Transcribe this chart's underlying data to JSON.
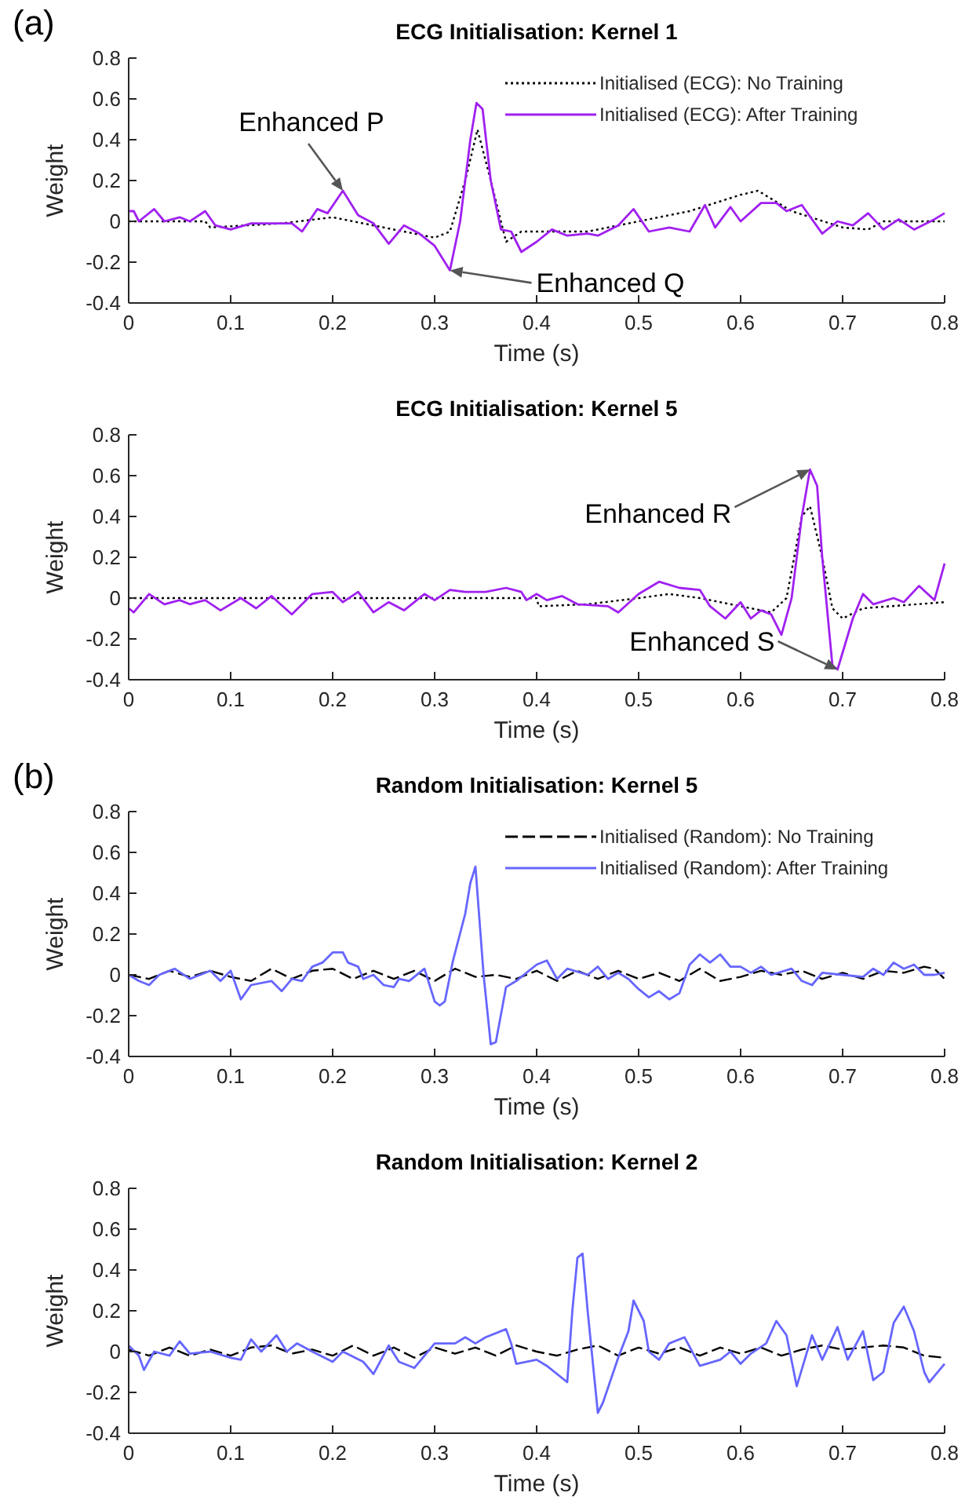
{
  "chart_data": [
    {
      "type": "line",
      "title": "ECG Initialisation: Kernel 1",
      "xlabel": "Time (s)",
      "ylabel": "Weight",
      "xlim": [
        0,
        0.8
      ],
      "xticks": [
        0,
        0.1,
        0.2,
        0.3,
        0.4,
        0.5,
        0.6,
        0.7,
        0.8
      ],
      "ylim": [
        -0.4,
        0.8
      ],
      "yticks": [
        -0.4,
        -0.2,
        0,
        0.2,
        0.4,
        0.6,
        0.8
      ],
      "legend": "top right",
      "annotations": [
        "(a)",
        {
          "text": "Enhanced P",
          "x": 0.21,
          "y": 0.15
        },
        {
          "text": "Enhanced Q",
          "x": 0.315,
          "y": -0.24
        }
      ],
      "series": [
        {
          "name": "Initialised (ECG): No Training",
          "color": "#000000",
          "line_style": "dotted",
          "x": [
            0,
            0.075,
            0.08,
            0.15,
            0.2,
            0.25,
            0.3,
            0.315,
            0.33,
            0.342,
            0.355,
            0.37,
            0.385,
            0.45,
            0.5,
            0.55,
            0.6,
            0.617,
            0.65,
            0.7,
            0.725,
            0.74,
            0.8
          ],
          "values": [
            0,
            0,
            -0.03,
            -0.01,
            0.02,
            -0.03,
            -0.08,
            -0.05,
            0.2,
            0.45,
            0.2,
            -0.1,
            -0.05,
            -0.05,
            0,
            0.05,
            0.13,
            0.15,
            0.05,
            -0.03,
            -0.04,
            0,
            0
          ]
        },
        {
          "name": "Initialised (ECG): After Training",
          "color": "#a020f0",
          "line_style": "solid",
          "x": [
            0,
            0.005,
            0.01,
            0.025,
            0.035,
            0.05,
            0.06,
            0.075,
            0.085,
            0.1,
            0.12,
            0.14,
            0.16,
            0.17,
            0.185,
            0.195,
            0.21,
            0.225,
            0.24,
            0.255,
            0.27,
            0.285,
            0.3,
            0.315,
            0.325,
            0.335,
            0.341,
            0.347,
            0.355,
            0.365,
            0.375,
            0.385,
            0.4,
            0.415,
            0.43,
            0.45,
            0.46,
            0.48,
            0.495,
            0.51,
            0.53,
            0.55,
            0.565,
            0.575,
            0.59,
            0.6,
            0.62,
            0.635,
            0.645,
            0.66,
            0.68,
            0.695,
            0.71,
            0.725,
            0.74,
            0.755,
            0.77,
            0.79,
            0.8
          ],
          "values": [
            0.05,
            0.05,
            0,
            0.06,
            0,
            0.02,
            0,
            0.05,
            -0.02,
            -0.04,
            -0.01,
            -0.01,
            -0.01,
            -0.05,
            0.06,
            0.04,
            0.15,
            0.03,
            -0.01,
            -0.11,
            -0.02,
            -0.06,
            -0.12,
            -0.24,
            0,
            0.4,
            0.58,
            0.55,
            0.2,
            -0.04,
            -0.05,
            -0.15,
            -0.1,
            -0.04,
            -0.07,
            -0.06,
            -0.07,
            -0.02,
            0.06,
            -0.05,
            -0.03,
            -0.05,
            0.08,
            -0.03,
            0.07,
            0,
            0.09,
            0.09,
            0.05,
            0.08,
            -0.06,
            0,
            -0.02,
            0.04,
            -0.04,
            0.01,
            -0.04,
            0.01,
            0.04
          ]
        }
      ]
    },
    {
      "type": "line",
      "title": "ECG Initialisation: Kernel 5",
      "xlabel": "Time (s)",
      "ylabel": "Weight",
      "xlim": [
        0,
        0.8
      ],
      "xticks": [
        0,
        0.1,
        0.2,
        0.3,
        0.4,
        0.5,
        0.6,
        0.7,
        0.8
      ],
      "ylim": [
        -0.4,
        0.8
      ],
      "yticks": [
        -0.4,
        -0.2,
        0,
        0.2,
        0.4,
        0.6,
        0.8
      ],
      "legend": false,
      "annotations": [
        {
          "text": "Enhanced R",
          "x": 0.668,
          "y": 0.63
        },
        {
          "text": "Enhanced S",
          "x": 0.695,
          "y": -0.35
        }
      ],
      "series": [
        {
          "color": "#000000",
          "line_style": "dotted",
          "x": [
            0,
            0.4,
            0.402,
            0.45,
            0.5,
            0.53,
            0.56,
            0.6,
            0.63,
            0.645,
            0.66,
            0.668,
            0.68,
            0.69,
            0.7,
            0.72,
            0.8
          ],
          "values": [
            0,
            0,
            -0.04,
            -0.03,
            0,
            0.02,
            0,
            -0.04,
            -0.07,
            0,
            0.4,
            0.45,
            0.2,
            -0.05,
            -0.1,
            -0.05,
            -0.02
          ]
        },
        {
          "color": "#a020f0",
          "line_style": "solid",
          "x": [
            0,
            0.005,
            0.02,
            0.035,
            0.05,
            0.06,
            0.075,
            0.09,
            0.11,
            0.125,
            0.14,
            0.16,
            0.18,
            0.2,
            0.21,
            0.225,
            0.24,
            0.255,
            0.27,
            0.29,
            0.3,
            0.315,
            0.33,
            0.35,
            0.37,
            0.385,
            0.39,
            0.4,
            0.41,
            0.425,
            0.44,
            0.47,
            0.48,
            0.5,
            0.52,
            0.54,
            0.56,
            0.57,
            0.585,
            0.6,
            0.61,
            0.62,
            0.63,
            0.64,
            0.65,
            0.66,
            0.668,
            0.675,
            0.68,
            0.69,
            0.695,
            0.71,
            0.72,
            0.73,
            0.75,
            0.76,
            0.775,
            0.79,
            0.8
          ],
          "values": [
            -0.05,
            -0.07,
            0.02,
            -0.03,
            -0.01,
            -0.03,
            -0.01,
            -0.06,
            0,
            -0.05,
            0.01,
            -0.08,
            0.02,
            0.03,
            -0.02,
            0.03,
            -0.07,
            -0.02,
            -0.06,
            0.02,
            -0.01,
            0.04,
            0.03,
            0.03,
            0.05,
            0.03,
            -0.01,
            0.02,
            -0.01,
            0.01,
            -0.03,
            -0.04,
            -0.07,
            0.02,
            0.08,
            0.05,
            0.04,
            -0.04,
            -0.1,
            -0.02,
            -0.1,
            -0.06,
            -0.08,
            -0.18,
            0,
            0.4,
            0.63,
            0.55,
            0.2,
            -0.33,
            -0.35,
            -0.1,
            0.02,
            -0.03,
            0,
            -0.02,
            0.06,
            -0.01,
            0.17
          ]
        }
      ]
    },
    {
      "type": "line",
      "title": "Random Initialisation: Kernel 5",
      "xlabel": "Time (s)",
      "ylabel": "Weight",
      "xlim": [
        0,
        0.8
      ],
      "xticks": [
        0,
        0.1,
        0.2,
        0.3,
        0.4,
        0.5,
        0.6,
        0.7,
        0.8
      ],
      "ylim": [
        -0.4,
        0.8
      ],
      "yticks": [
        -0.4,
        -0.2,
        0,
        0.2,
        0.4,
        0.6,
        0.8
      ],
      "legend": "top right",
      "annotations": [
        "(b)"
      ],
      "series": [
        {
          "name": "Initialised (Random): No Training",
          "color": "#000000",
          "line_style": "dashed",
          "x": [
            0,
            0.02,
            0.04,
            0.06,
            0.08,
            0.1,
            0.12,
            0.14,
            0.16,
            0.18,
            0.2,
            0.22,
            0.24,
            0.26,
            0.28,
            0.3,
            0.32,
            0.34,
            0.36,
            0.38,
            0.4,
            0.42,
            0.44,
            0.46,
            0.48,
            0.5,
            0.52,
            0.54,
            0.56,
            0.58,
            0.6,
            0.62,
            0.64,
            0.66,
            0.68,
            0.7,
            0.72,
            0.74,
            0.76,
            0.78,
            0.79,
            0.8
          ],
          "values": [
            0,
            -0.02,
            0.02,
            -0.01,
            0.02,
            -0.01,
            -0.03,
            0.03,
            -0.02,
            0.02,
            0.03,
            -0.02,
            0.02,
            -0.02,
            0.02,
            -0.03,
            0.03,
            -0.01,
            0,
            -0.02,
            0.02,
            -0.03,
            0.02,
            -0.02,
            0.02,
            -0.02,
            0.01,
            -0.03,
            0.03,
            -0.03,
            -0.01,
            0.02,
            0,
            0.02,
            -0.02,
            0.01,
            -0.02,
            0.02,
            0.01,
            0.04,
            0.03,
            -0.02
          ]
        },
        {
          "name": "Initialised (Random): After Training",
          "color": "#6666ff",
          "line_style": "solid",
          "x": [
            0,
            0.01,
            0.02,
            0.03,
            0.045,
            0.06,
            0.08,
            0.09,
            0.1,
            0.11,
            0.12,
            0.14,
            0.15,
            0.16,
            0.17,
            0.18,
            0.19,
            0.2,
            0.21,
            0.215,
            0.225,
            0.23,
            0.24,
            0.25,
            0.26,
            0.265,
            0.275,
            0.29,
            0.3,
            0.305,
            0.31,
            0.318,
            0.33,
            0.335,
            0.34,
            0.348,
            0.355,
            0.36,
            0.37,
            0.38,
            0.39,
            0.4,
            0.41,
            0.42,
            0.43,
            0.45,
            0.46,
            0.47,
            0.48,
            0.49,
            0.5,
            0.51,
            0.52,
            0.53,
            0.54,
            0.55,
            0.56,
            0.57,
            0.58,
            0.59,
            0.6,
            0.61,
            0.62,
            0.63,
            0.65,
            0.66,
            0.67,
            0.68,
            0.7,
            0.72,
            0.73,
            0.74,
            0.75,
            0.76,
            0.77,
            0.78,
            0.79,
            0.8
          ],
          "values": [
            0,
            -0.03,
            -0.05,
            0,
            0.03,
            -0.02,
            0.02,
            -0.03,
            0.02,
            -0.12,
            -0.05,
            -0.03,
            -0.08,
            -0.02,
            -0.03,
            0.04,
            0.06,
            0.11,
            0.11,
            0.06,
            0.04,
            -0.02,
            0,
            -0.05,
            -0.06,
            -0.02,
            -0.03,
            0.03,
            -0.13,
            -0.15,
            -0.13,
            0.07,
            0.3,
            0.45,
            0.53,
            0,
            -0.34,
            -0.33,
            -0.06,
            -0.03,
            0.01,
            0.05,
            0.07,
            -0.02,
            0.03,
            0,
            0.04,
            -0.02,
            0.01,
            -0.02,
            -0.07,
            -0.11,
            -0.08,
            -0.12,
            -0.09,
            0.05,
            0.1,
            0.06,
            0.1,
            0.04,
            0.04,
            0.01,
            0.04,
            0,
            0.03,
            -0.03,
            -0.05,
            0.01,
            0,
            -0.01,
            0.03,
            0,
            0.06,
            0.03,
            0.05,
            0,
            0,
            0.01
          ]
        }
      ]
    },
    {
      "type": "line",
      "title": "Random Initialisation: Kernel 2",
      "xlabel": "Time (s)",
      "ylabel": "Weight",
      "xlim": [
        0,
        0.8
      ],
      "xticks": [
        0,
        0.1,
        0.2,
        0.3,
        0.4,
        0.5,
        0.6,
        0.7,
        0.8
      ],
      "ylim": [
        -0.4,
        0.8
      ],
      "yticks": [
        -0.4,
        -0.2,
        0,
        0.2,
        0.4,
        0.6,
        0.8
      ],
      "legend": false,
      "series": [
        {
          "color": "#000000",
          "line_style": "dashed",
          "x": [
            0,
            0.02,
            0.04,
            0.06,
            0.08,
            0.1,
            0.12,
            0.14,
            0.16,
            0.18,
            0.2,
            0.22,
            0.24,
            0.26,
            0.28,
            0.3,
            0.32,
            0.34,
            0.36,
            0.38,
            0.4,
            0.42,
            0.44,
            0.46,
            0.48,
            0.5,
            0.52,
            0.54,
            0.56,
            0.58,
            0.6,
            0.62,
            0.64,
            0.66,
            0.68,
            0.7,
            0.72,
            0.74,
            0.76,
            0.78,
            0.8
          ],
          "values": [
            0.01,
            -0.02,
            0.02,
            -0.02,
            0.01,
            -0.02,
            0.02,
            0.03,
            -0.01,
            0.01,
            -0.02,
            0.03,
            -0.02,
            0.02,
            -0.03,
            0.02,
            -0.01,
            0.02,
            -0.02,
            0.03,
            0,
            -0.02,
            0.01,
            0.03,
            -0.02,
            0.02,
            -0.01,
            0.02,
            -0.02,
            0.02,
            -0.01,
            0.02,
            -0.02,
            0.01,
            0.03,
            0.01,
            0.02,
            0.03,
            0.02,
            -0.02,
            -0.03
          ]
        },
        {
          "color": "#6666ff",
          "line_style": "solid",
          "x": [
            0,
            0.01,
            0.015,
            0.025,
            0.04,
            0.05,
            0.06,
            0.08,
            0.1,
            0.11,
            0.12,
            0.13,
            0.145,
            0.155,
            0.165,
            0.18,
            0.2,
            0.21,
            0.23,
            0.24,
            0.255,
            0.265,
            0.28,
            0.3,
            0.32,
            0.33,
            0.34,
            0.35,
            0.37,
            0.375,
            0.38,
            0.4,
            0.41,
            0.43,
            0.435,
            0.44,
            0.445,
            0.45,
            0.46,
            0.465,
            0.48,
            0.49,
            0.495,
            0.505,
            0.51,
            0.52,
            0.53,
            0.545,
            0.56,
            0.58,
            0.59,
            0.6,
            0.61,
            0.625,
            0.635,
            0.645,
            0.655,
            0.67,
            0.68,
            0.695,
            0.705,
            0.72,
            0.73,
            0.74,
            0.75,
            0.76,
            0.77,
            0.78,
            0.785,
            0.79,
            0.8
          ],
          "values": [
            0.03,
            -0.02,
            -0.09,
            0,
            -0.02,
            0.05,
            -0.01,
            0,
            -0.03,
            -0.04,
            0.06,
            0,
            0.08,
            0,
            0.04,
            0,
            -0.05,
            0,
            -0.05,
            -0.11,
            0.03,
            -0.05,
            -0.08,
            0.04,
            0.04,
            0.07,
            0.04,
            0.07,
            0.11,
            0.04,
            -0.06,
            -0.04,
            -0.07,
            -0.15,
            0.2,
            0.46,
            0.48,
            0.2,
            -0.3,
            -0.25,
            -0.03,
            0.1,
            0.25,
            0.15,
            0,
            -0.04,
            0.04,
            0.07,
            -0.07,
            -0.04,
            0,
            -0.06,
            -0.01,
            0.04,
            0.15,
            0.08,
            -0.17,
            0.08,
            -0.04,
            0.12,
            -0.04,
            0.1,
            -0.14,
            -0.1,
            0.14,
            0.22,
            0.1,
            -0.1,
            -0.15,
            -0.12,
            -0.06
          ]
        }
      ]
    }
  ]
}
